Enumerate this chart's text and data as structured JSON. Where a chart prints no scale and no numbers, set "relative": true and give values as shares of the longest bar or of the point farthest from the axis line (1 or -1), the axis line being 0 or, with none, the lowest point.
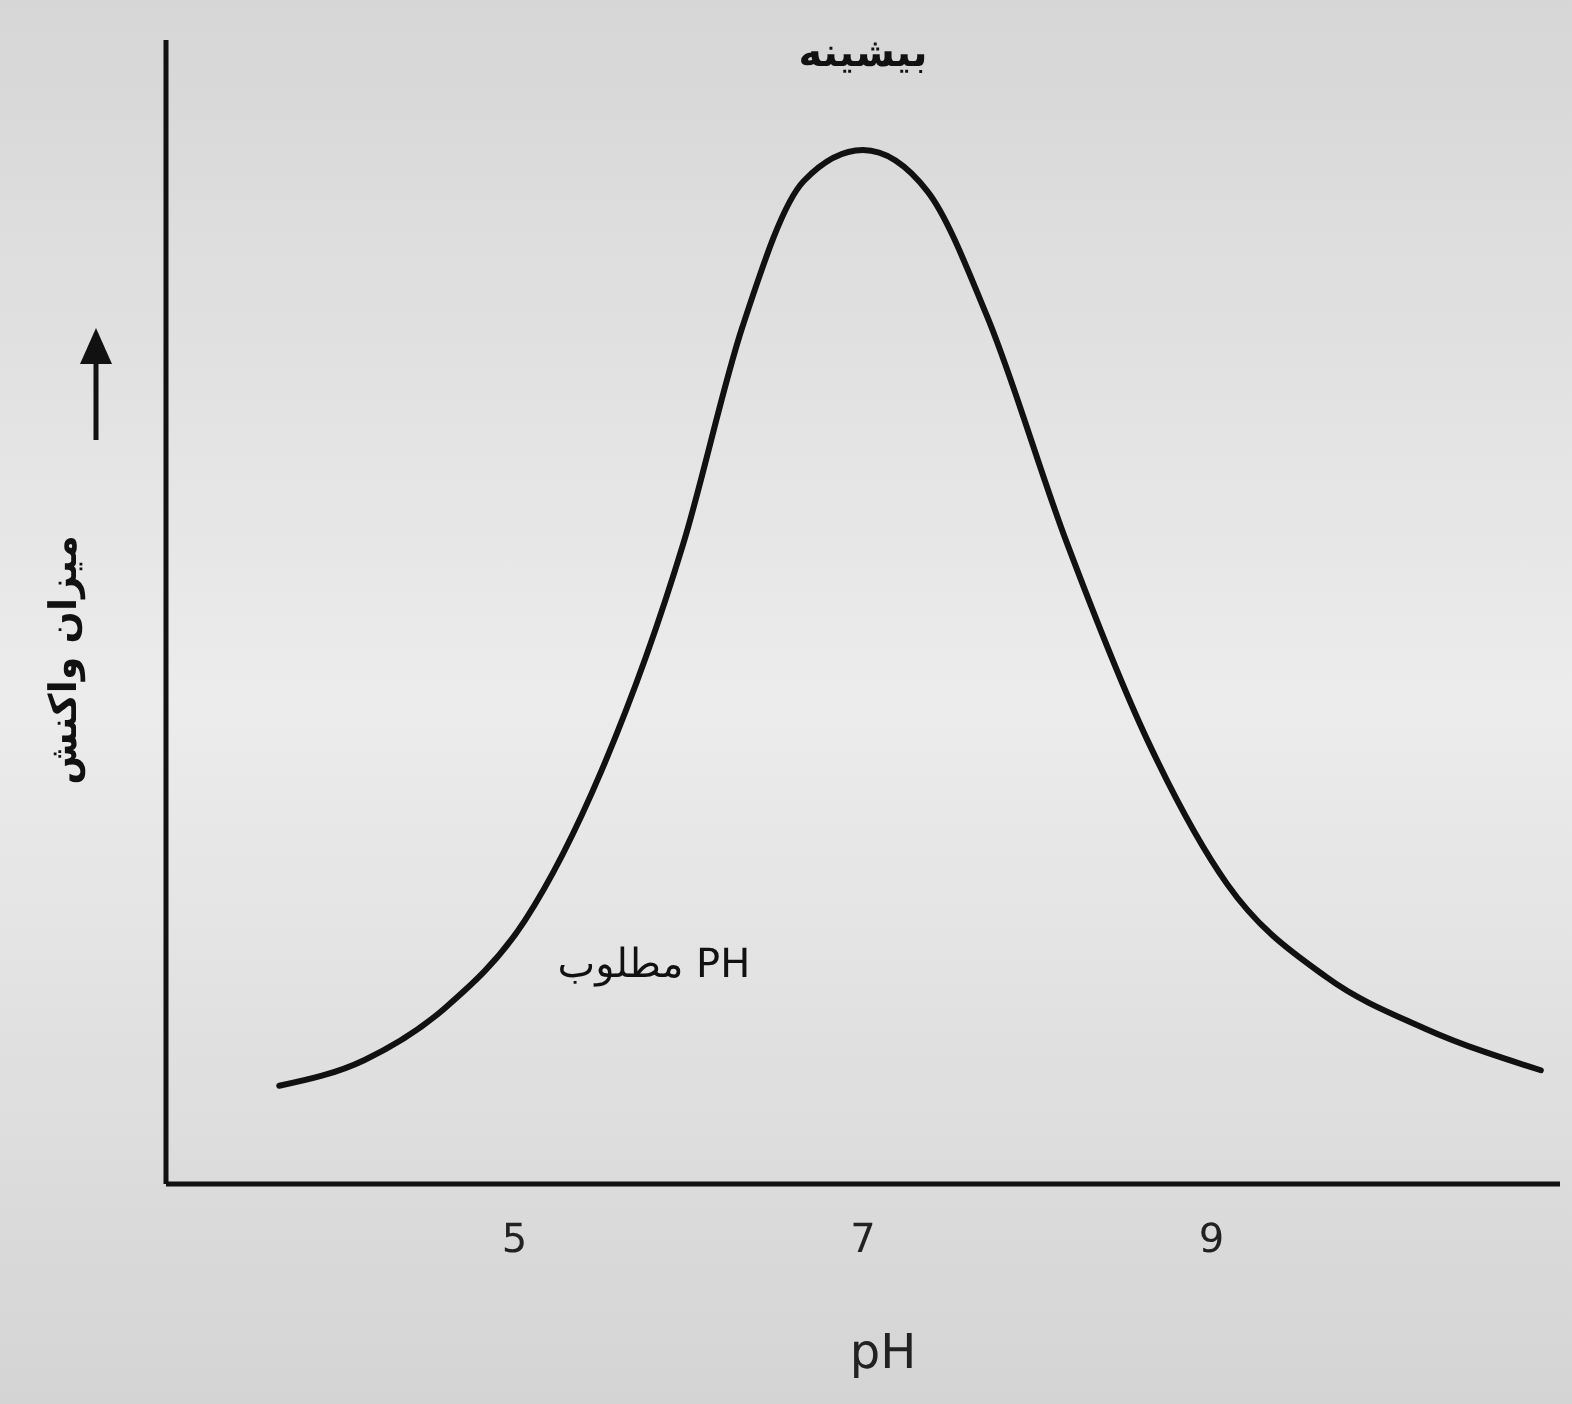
{
  "chart_data": {
    "type": "line",
    "relative": true,
    "xlabel": "pH",
    "ylabel": "میزان واکنش",
    "xlim": [
      3,
      11
    ],
    "xticks": [
      5,
      7,
      9
    ],
    "grid": false,
    "marker": "none",
    "line_style": "solid",
    "x": [
      3.65,
      4.14,
      4.6,
      5.06,
      5.5,
      5.97,
      6.31,
      6.66,
      7.0,
      7.37,
      7.71,
      8.17,
      8.63,
      9.09,
      9.66,
      10.23,
      10.89
    ],
    "series": [
      {
        "color": "#111111",
        "values": [
          0.095,
          0.12,
          0.17,
          0.255,
          0.4,
          0.62,
          0.83,
          0.97,
          1.0,
          0.96,
          0.84,
          0.62,
          0.43,
          0.29,
          0.2,
          0.15,
          0.11
        ]
      }
    ],
    "annotations": [
      {
        "text": "بیشینه",
        "x": 7,
        "y": 1
      },
      "PH مطلوب"
    ]
  }
}
